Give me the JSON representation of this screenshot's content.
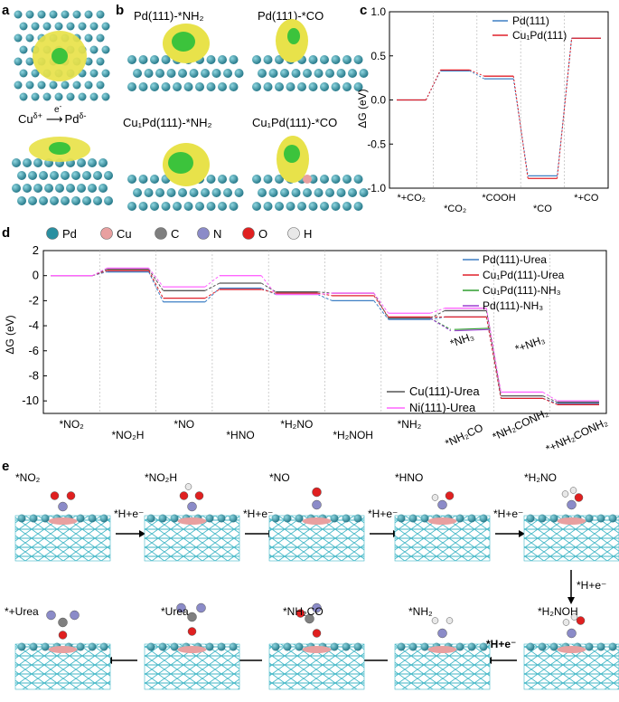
{
  "panel_letters": {
    "a": "a",
    "b": "b",
    "c": "c",
    "d": "d",
    "e": "e"
  },
  "colors": {
    "pd": "#2a8fa0",
    "cu": "#e8a0a0",
    "c": "#7f7f7f",
    "n": "#8b8bc8",
    "o": "#e02020",
    "h": "#e8e8e8",
    "iso_yellow": "#e8e24a",
    "iso_green": "#3cc33c",
    "pd111": "#3d7fc4",
    "cu1pd111": "#e0202a",
    "cu1pd111_nh3": "#2f9e2f",
    "pd111_nh3": "#9b3fd0",
    "cu111": "#555555",
    "ni111": "#ff66ff"
  },
  "panel_a": {
    "transfer": "Cuδ+ → Pdδ-",
    "cu_label": "Cu",
    "cu_sup": "δ+",
    "e_label": "e",
    "e_sup": "-",
    "pd_label": "Pd",
    "pd_sup": "δ-"
  },
  "panel_b": {
    "titles": [
      "Pd(111)-*NH₂",
      "Pd(111)-*CO",
      "Cu₁Pd(111)-*NH₂",
      "Cu₁Pd(111)-*CO"
    ]
  },
  "chart_data": [
    {
      "id": "c",
      "type": "line",
      "title": "",
      "ylabel": "ΔG (eV)",
      "xlabel": "",
      "ylim": [
        -1.0,
        1.0
      ],
      "yticks": [
        -1.0,
        -0.5,
        0.0,
        0.5,
        1.0
      ],
      "ytick_labels": [
        "-1.0",
        "-0.5",
        "0.0",
        "0.5",
        "1.0"
      ],
      "categories": [
        "*+CO₂",
        "*CO₂",
        "*COOH",
        "*CO",
        "*+CO"
      ],
      "legend": "top-right",
      "series": [
        {
          "name": "Pd(111)",
          "color": "#3d7fc4",
          "values": [
            0.0,
            0.33,
            0.24,
            -0.86,
            0.7
          ]
        },
        {
          "name": "Cu₁Pd(111)",
          "color": "#e0202a",
          "values": [
            0.0,
            0.34,
            0.27,
            -0.89,
            0.7
          ]
        }
      ]
    },
    {
      "id": "d",
      "type": "line",
      "ylabel": "ΔG (eV)",
      "ylim": [
        -11,
        2
      ],
      "yticks": [
        2,
        0,
        -2,
        -4,
        -6,
        -8,
        -10
      ],
      "ytick_labels": [
        "2",
        "0",
        "-2",
        "-4",
        "-6",
        "-8",
        "-10"
      ],
      "categories": [
        "*NO₂",
        "*NO₂H",
        "*NO",
        "*HNO",
        "*H₂NO",
        "*H₂NOH",
        "*NH₂",
        "*NH₂CO",
        "*NH₂CONH₂",
        "*+NH₂CONH₂"
      ],
      "atom_legend": [
        "Pd",
        "Cu",
        "C",
        "N",
        "O",
        "H"
      ],
      "legend_top": "top-right",
      "legend_bottom": "bottom-center",
      "series": [
        {
          "name": "Pd(111)-Urea",
          "color": "#3d7fc4",
          "values": [
            0,
            0.3,
            -2.1,
            -1.0,
            -1.5,
            -2.0,
            -3.5,
            -3.3,
            -9.8,
            -10.2
          ]
        },
        {
          "name": "Cu₁Pd(111)-Urea",
          "color": "#e0202a",
          "values": [
            0,
            0.4,
            -1.8,
            -1.1,
            -1.4,
            -1.6,
            -3.3,
            -3.3,
            -9.8,
            -10.3
          ]
        },
        {
          "name": "Cu(111)-Urea",
          "color": "#555555",
          "values": [
            0,
            0.5,
            -1.2,
            -0.6,
            -1.3,
            -1.4,
            -3.4,
            -2.8,
            -9.6,
            -10.1
          ]
        },
        {
          "name": "Ni(111)-Urea",
          "color": "#ff66ff",
          "values": [
            0,
            0.6,
            -0.9,
            0.0,
            -1.5,
            -1.4,
            -3.0,
            -2.6,
            -9.3,
            -10.0
          ]
        }
      ],
      "nh3_branches": [
        {
          "name": "Cu₁Pd(111)-NH₃",
          "color": "#2f9e2f",
          "values": [
            -3.4,
            -4.3,
            -4.2
          ]
        },
        {
          "name": "Pd(111)-NH₃",
          "color": "#9b3fd0",
          "values": [
            -3.4,
            -4.4,
            -4.3
          ]
        }
      ],
      "annotations": [
        "*NH₃",
        "*+NH₃"
      ]
    }
  ],
  "panel_e": {
    "states": [
      "*NO₂",
      "*NO₂H",
      "*NO",
      "*HNO",
      "*H₂NO",
      "*H₂NOH",
      "*NH₂",
      "*NH₂CO",
      "*Urea",
      "*+Urea"
    ],
    "step_label": "*H+e⁻"
  }
}
